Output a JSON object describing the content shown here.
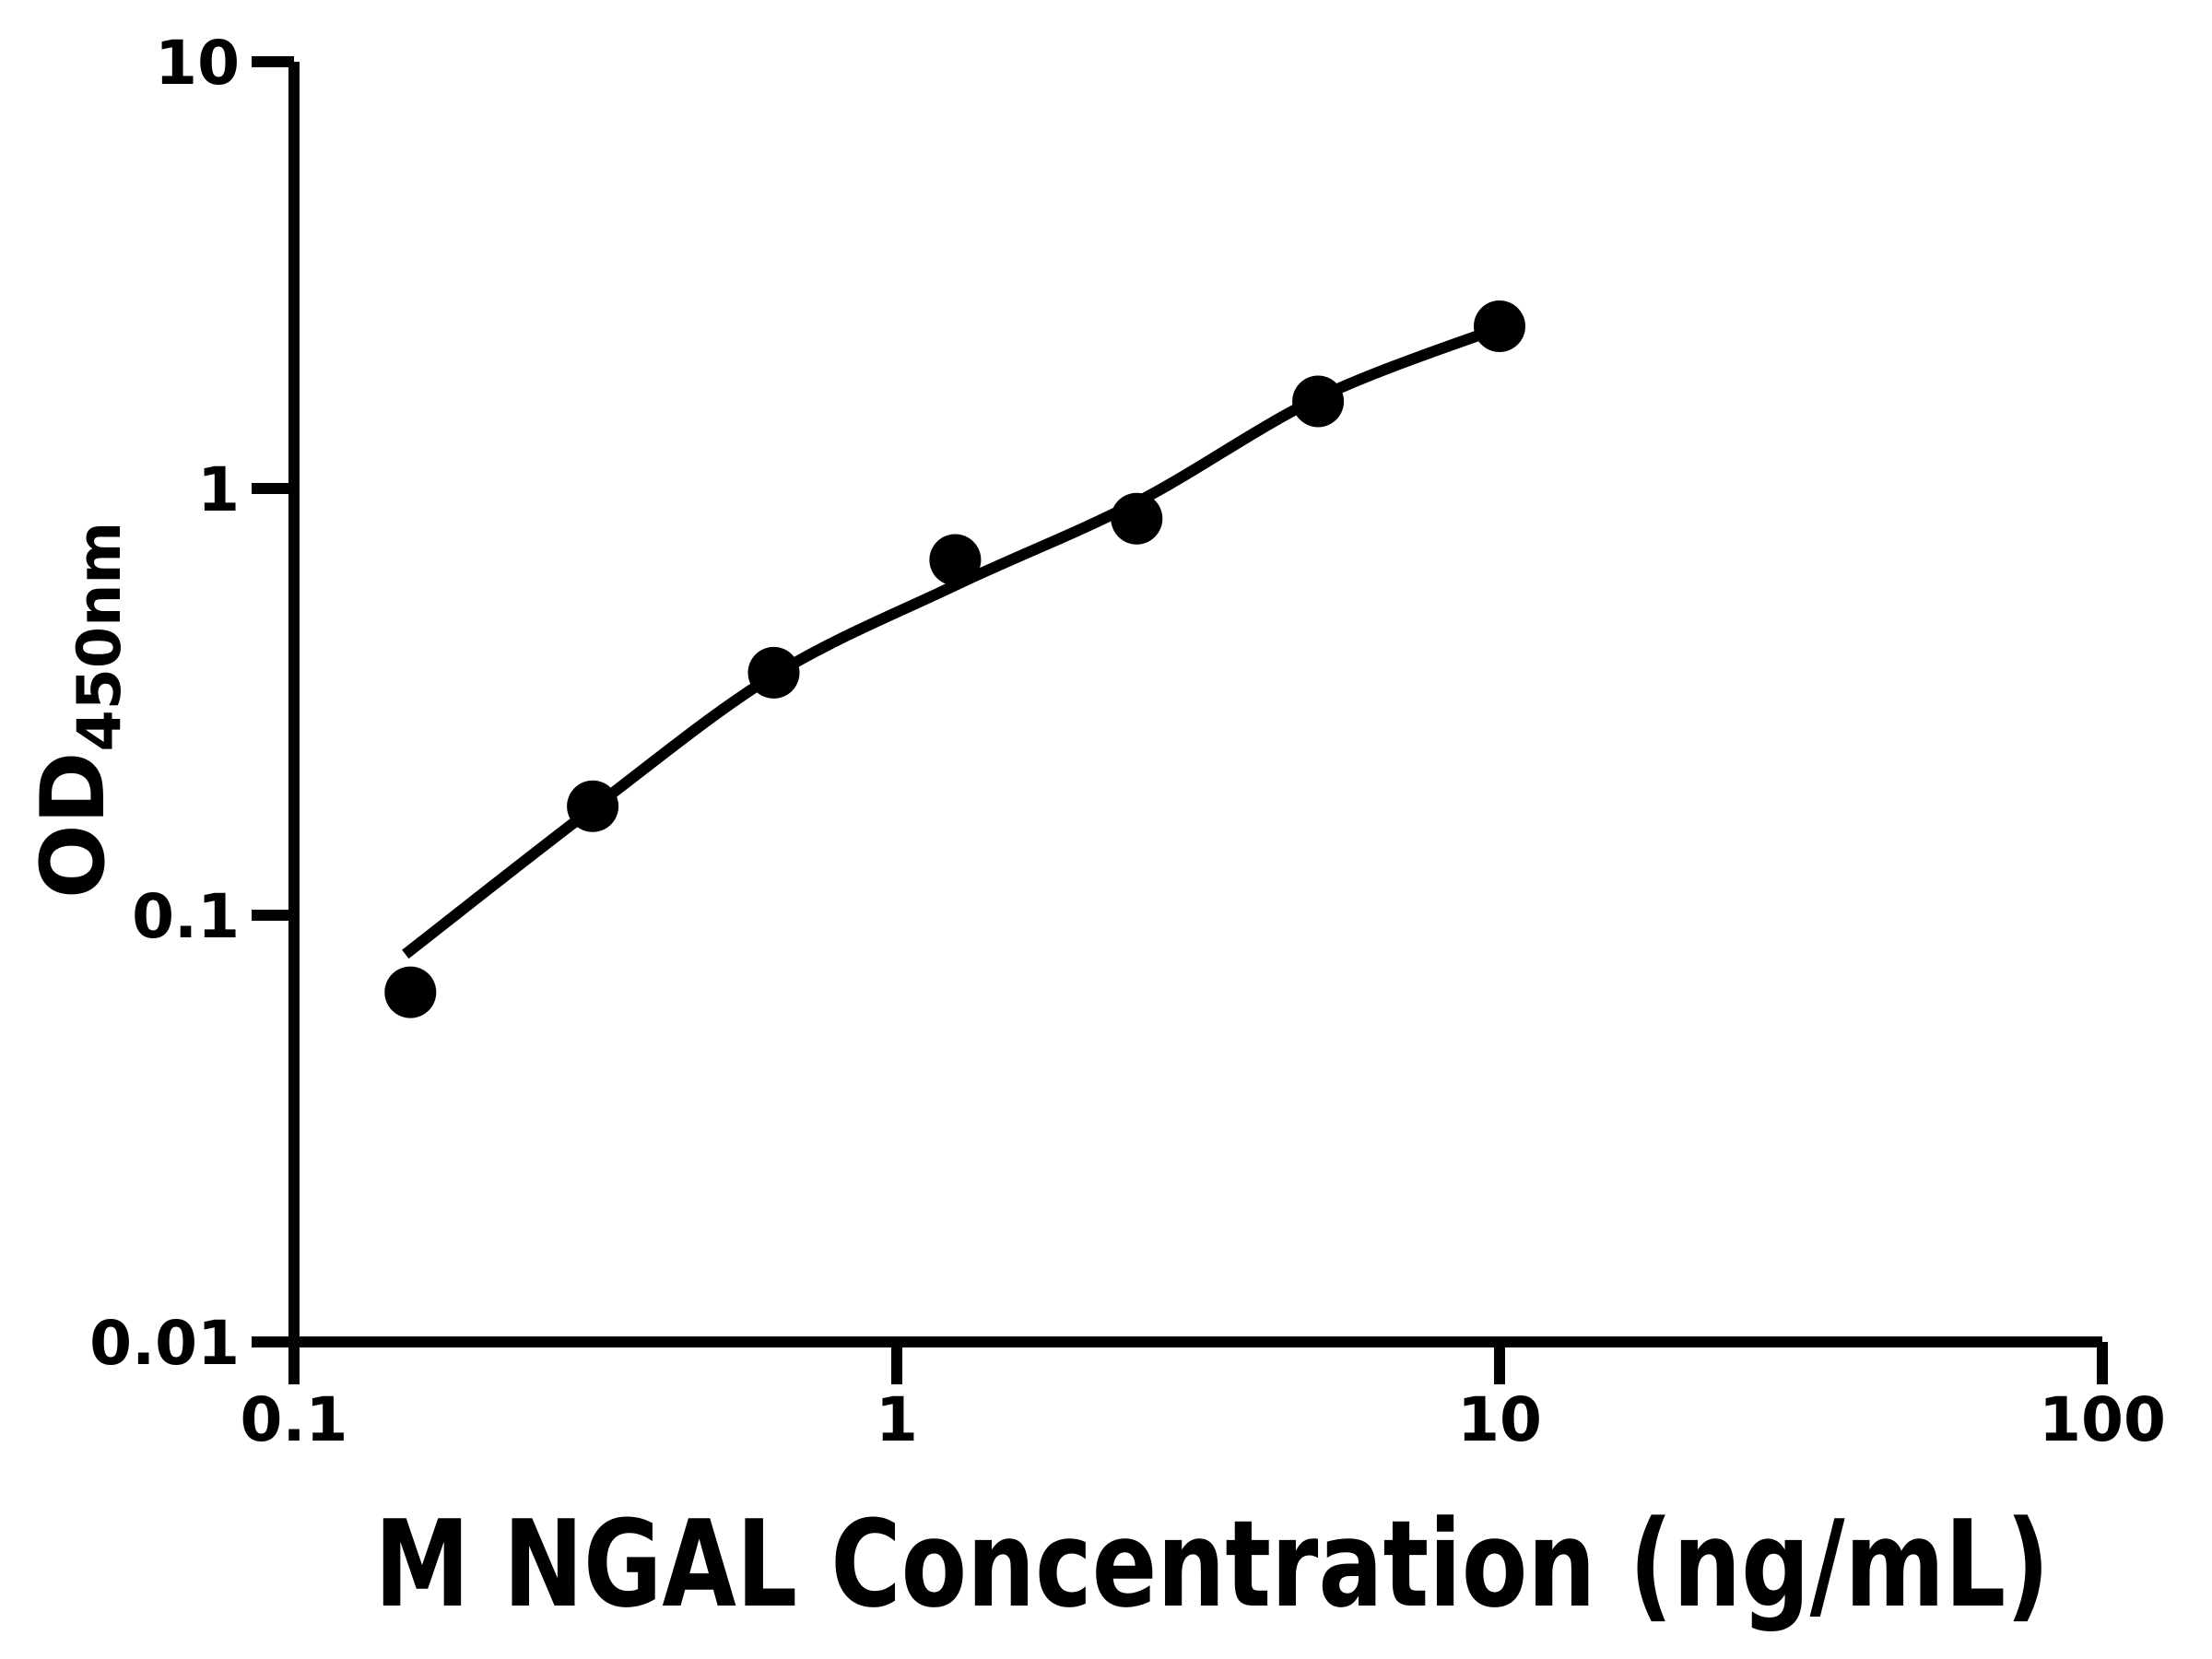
{
  "figure": {
    "background_color": "#ffffff",
    "ink_color": "#000000"
  },
  "chart_data": {
    "type": "scatter",
    "title": "",
    "xlabel": "M NGAL Concentration (ng/mL)",
    "ylabel_base": "OD",
    "ylabel_subscript": "450nm",
    "x_scale": "log10",
    "y_scale": "log10",
    "xlim": [
      0.1,
      100
    ],
    "ylim": [
      0.01,
      10
    ],
    "grid": false,
    "legend": null,
    "x_ticks": [
      {
        "value": 0.1,
        "label": "0.1"
      },
      {
        "value": 1,
        "label": "1"
      },
      {
        "value": 10,
        "label": "10"
      },
      {
        "value": 100,
        "label": "100"
      }
    ],
    "y_ticks": [
      {
        "value": 10,
        "label": "10"
      },
      {
        "value": 1,
        "label": "1"
      },
      {
        "value": 0.1,
        "label": "0.1"
      },
      {
        "value": 0.01,
        "label": "0.01"
      }
    ],
    "series": [
      {
        "name": "standard-points",
        "type": "scatter",
        "marker": "filled-circle",
        "color": "#000000",
        "points": [
          {
            "x": 0.156,
            "y": 0.066
          },
          {
            "x": 0.313,
            "y": 0.18
          },
          {
            "x": 0.625,
            "y": 0.37
          },
          {
            "x": 1.25,
            "y": 0.68
          },
          {
            "x": 2.5,
            "y": 0.85
          },
          {
            "x": 5,
            "y": 1.6
          },
          {
            "x": 10,
            "y": 2.4
          }
        ]
      },
      {
        "name": "fitted-curve",
        "type": "line",
        "color": "#000000",
        "points": [
          {
            "x": 0.153,
            "y": 0.081
          },
          {
            "x": 0.313,
            "y": 0.178
          },
          {
            "x": 0.625,
            "y": 0.365
          },
          {
            "x": 1.25,
            "y": 0.593
          },
          {
            "x": 2.5,
            "y": 0.928
          },
          {
            "x": 5,
            "y": 1.63
          },
          {
            "x": 10,
            "y": 2.38
          }
        ]
      }
    ]
  }
}
